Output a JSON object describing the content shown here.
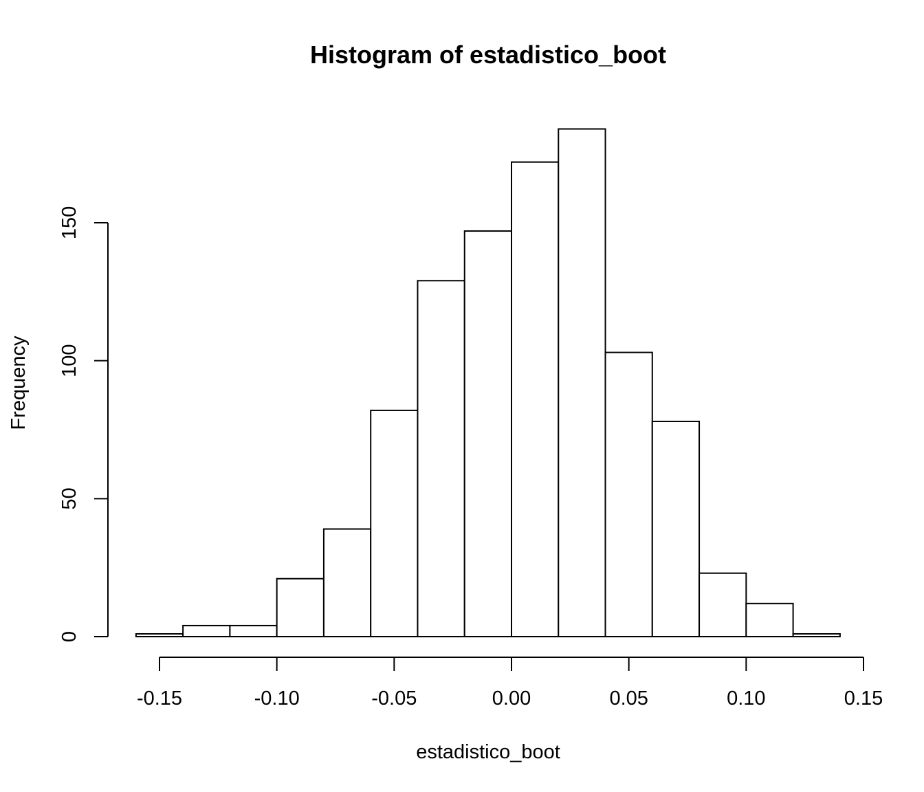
{
  "chart_data": {
    "type": "bar",
    "title": "Histogram of estadistico_boot",
    "xlabel": "estadistico_boot",
    "ylabel": "Frequency",
    "bin_edges": [
      -0.16,
      -0.14,
      -0.12,
      -0.1,
      -0.08,
      -0.06,
      -0.04,
      -0.02,
      0.0,
      0.02,
      0.04,
      0.06,
      0.08,
      0.1,
      0.12,
      0.14
    ],
    "counts": [
      1,
      4,
      4,
      21,
      39,
      82,
      129,
      147,
      172,
      184,
      103,
      78,
      23,
      12,
      1
    ],
    "xticks": [
      -0.15,
      -0.1,
      -0.05,
      0.0,
      0.05,
      0.1,
      0.15
    ],
    "xtick_labels": [
      "-0.15",
      "-0.10",
      "-0.05",
      "0.00",
      "0.05",
      "0.10",
      "0.15"
    ],
    "yticks": [
      0,
      50,
      100,
      150
    ],
    "ytick_labels": [
      "0",
      "50",
      "100",
      "150"
    ],
    "xlim": [
      -0.15,
      0.15
    ],
    "ylim": [
      0,
      150
    ],
    "grid": false,
    "colors": {
      "bar_fill": "#ffffff",
      "bar_stroke": "#000000",
      "background": "#ffffff"
    }
  }
}
